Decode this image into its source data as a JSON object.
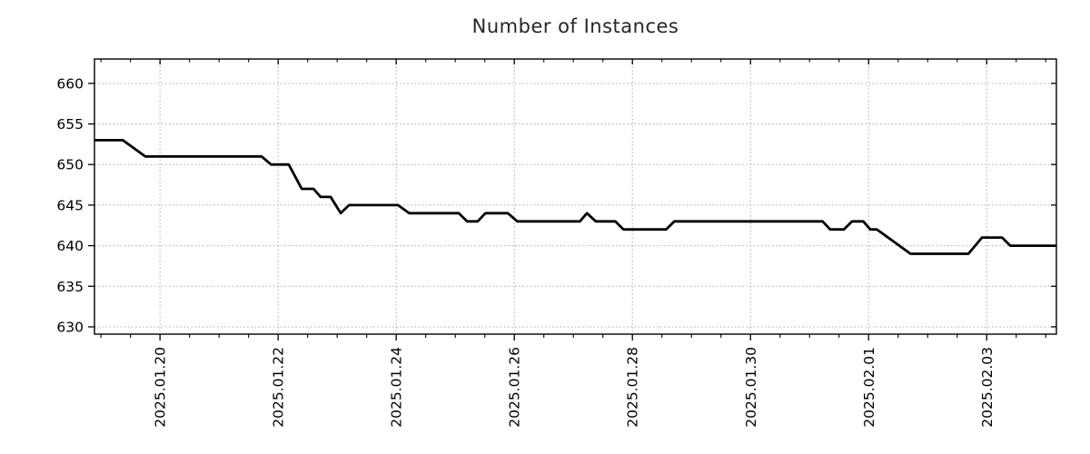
{
  "chart_data": {
    "type": "line",
    "title": "Number of Instances",
    "legend": "none",
    "grid": "dotted at major ticks",
    "x_range": [
      -1.11,
      15.18
    ],
    "y_range": [
      629.1,
      663.0
    ],
    "x_axis_unit": "days since 2025.01.20",
    "x_minor_interval": 0.5,
    "x_ticks": [
      {
        "d": 0,
        "label": "2025.01.20"
      },
      {
        "d": 2,
        "label": "2025.01.22"
      },
      {
        "d": 4,
        "label": "2025.01.24"
      },
      {
        "d": 6,
        "label": "2025.01.26"
      },
      {
        "d": 8,
        "label": "2025.01.28"
      },
      {
        "d": 10,
        "label": "2025.01.30"
      },
      {
        "d": 12,
        "label": "2025.02.01"
      },
      {
        "d": 14,
        "label": "2025.02.03"
      }
    ],
    "y_ticks": [
      630,
      635,
      640,
      645,
      650,
      655,
      660
    ],
    "series": [
      {
        "name": "number-of-instances",
        "points": [
          [
            -1.11,
            653
          ],
          [
            -0.63,
            653
          ],
          [
            -0.25,
            651
          ],
          [
            1.72,
            651
          ],
          [
            1.88,
            650
          ],
          [
            2.18,
            650
          ],
          [
            2.4,
            647
          ],
          [
            2.6,
            647
          ],
          [
            2.72,
            646
          ],
          [
            2.89,
            646
          ],
          [
            3.06,
            644
          ],
          [
            3.2,
            645
          ],
          [
            4.03,
            645
          ],
          [
            4.22,
            644
          ],
          [
            5.06,
            644
          ],
          [
            5.2,
            643
          ],
          [
            5.38,
            643
          ],
          [
            5.51,
            644
          ],
          [
            5.89,
            644
          ],
          [
            6.05,
            643
          ],
          [
            7.11,
            643
          ],
          [
            7.23,
            644
          ],
          [
            7.38,
            643
          ],
          [
            7.71,
            643
          ],
          [
            7.85,
            642
          ],
          [
            8.57,
            642
          ],
          [
            8.71,
            643
          ],
          [
            11.22,
            643
          ],
          [
            11.35,
            642
          ],
          [
            11.58,
            642
          ],
          [
            11.72,
            643
          ],
          [
            11.91,
            643
          ],
          [
            12.03,
            642
          ],
          [
            12.14,
            642
          ],
          [
            12.71,
            639
          ],
          [
            13.69,
            639
          ],
          [
            13.92,
            641
          ],
          [
            14.26,
            641
          ],
          [
            14.4,
            640
          ],
          [
            15.18,
            640
          ]
        ]
      }
    ],
    "colors": {
      "line": "#000000",
      "grid": "#ababab",
      "frame": "#000000",
      "tick_text": "#000000",
      "title_text": "#262626",
      "background": "#ffffff"
    }
  }
}
